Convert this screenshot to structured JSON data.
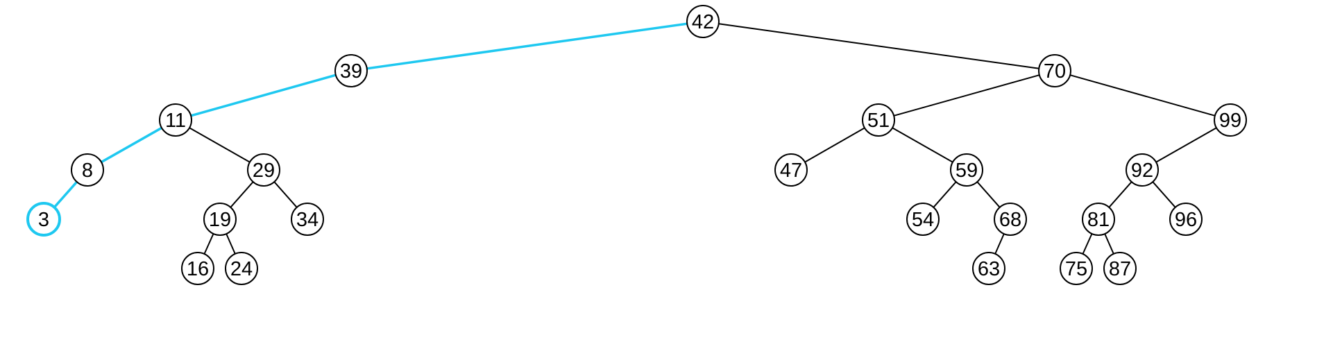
{
  "colors": {
    "highlight": "#1ec8f0",
    "stroke": "#000000",
    "fill": "#ffffff",
    "text": "#000000"
  },
  "tree": {
    "root": "42",
    "highlighted_node": "3",
    "highlighted_path": [
      "42",
      "39",
      "11",
      "8",
      "3"
    ],
    "nodes": [
      {
        "id": "42",
        "label": "42",
        "left": "39",
        "right": "70"
      },
      {
        "id": "39",
        "label": "39",
        "left": "11",
        "right": null
      },
      {
        "id": "11",
        "label": "11",
        "left": "8",
        "right": "29"
      },
      {
        "id": "8",
        "label": "8",
        "left": "3",
        "right": null
      },
      {
        "id": "3",
        "label": "3",
        "left": null,
        "right": null
      },
      {
        "id": "29",
        "label": "29",
        "left": "19",
        "right": "34"
      },
      {
        "id": "19",
        "label": "19",
        "left": "16",
        "right": "24"
      },
      {
        "id": "16",
        "label": "16",
        "left": null,
        "right": null
      },
      {
        "id": "24",
        "label": "24",
        "left": null,
        "right": null
      },
      {
        "id": "34",
        "label": "34",
        "left": null,
        "right": null
      },
      {
        "id": "70",
        "label": "70",
        "left": "51",
        "right": "99"
      },
      {
        "id": "51",
        "label": "51",
        "left": "47",
        "right": "59"
      },
      {
        "id": "47",
        "label": "47",
        "left": null,
        "right": null
      },
      {
        "id": "59",
        "label": "59",
        "left": "54",
        "right": "68"
      },
      {
        "id": "54",
        "label": "54",
        "left": null,
        "right": null
      },
      {
        "id": "68",
        "label": "68",
        "left": "63",
        "right": null
      },
      {
        "id": "63",
        "label": "63",
        "left": null,
        "right": null
      },
      {
        "id": "99",
        "label": "99",
        "left": "92",
        "right": null
      },
      {
        "id": "92",
        "label": "92",
        "left": "81",
        "right": "96"
      },
      {
        "id": "81",
        "label": "81",
        "left": "75",
        "right": "87"
      },
      {
        "id": "75",
        "label": "75",
        "left": null,
        "right": null
      },
      {
        "id": "87",
        "label": "87",
        "left": null,
        "right": null
      },
      {
        "id": "96",
        "label": "96",
        "left": null,
        "right": null
      }
    ]
  }
}
